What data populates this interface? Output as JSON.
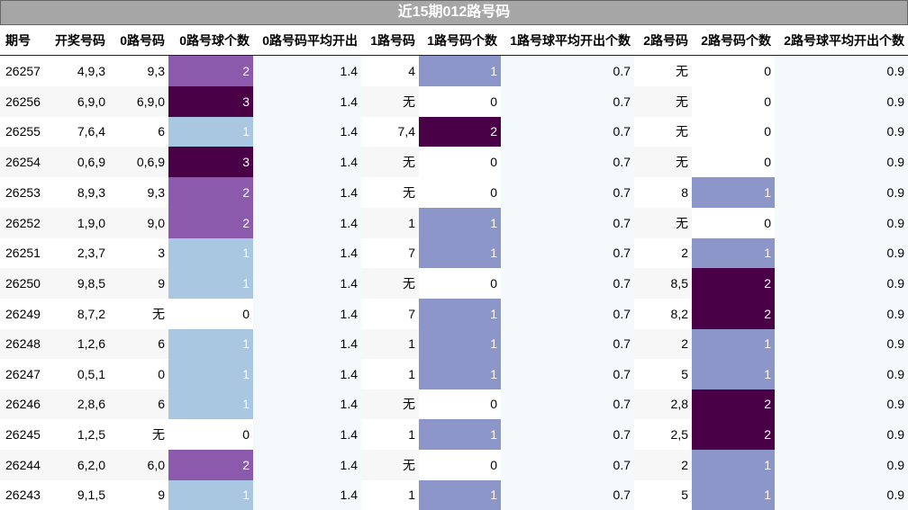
{
  "title": "近15期012路号码",
  "headers": [
    "期号",
    "开奖号码",
    "0路号码",
    "0路号球个数",
    "0路号码平均开出",
    "1路号码",
    "1路号码个数",
    "1路号球平均开出个数",
    "2路号码",
    "2路号码个数",
    "2路号球平均开出个数"
  ],
  "rows": [
    [
      "26257",
      "4,9,3",
      "9,3",
      "2",
      "1.4",
      "4",
      "1",
      "0.7",
      "无",
      "0",
      "0.9"
    ],
    [
      "26256",
      "6,9,0",
      "6,9,0",
      "3",
      "1.4",
      "无",
      "0",
      "0.7",
      "无",
      "0",
      "0.9"
    ],
    [
      "26255",
      "7,6,4",
      "6",
      "1",
      "1.4",
      "7,4",
      "2",
      "0.7",
      "无",
      "0",
      "0.9"
    ],
    [
      "26254",
      "0,6,9",
      "0,6,9",
      "3",
      "1.4",
      "无",
      "0",
      "0.7",
      "无",
      "0",
      "0.9"
    ],
    [
      "26253",
      "8,9,3",
      "9,3",
      "2",
      "1.4",
      "无",
      "0",
      "0.7",
      "8",
      "1",
      "0.9"
    ],
    [
      "26252",
      "1,9,0",
      "9,0",
      "2",
      "1.4",
      "1",
      "1",
      "0.7",
      "无",
      "0",
      "0.9"
    ],
    [
      "26251",
      "2,3,7",
      "3",
      "1",
      "1.4",
      "7",
      "1",
      "0.7",
      "2",
      "1",
      "0.9"
    ],
    [
      "26250",
      "9,8,5",
      "9",
      "1",
      "1.4",
      "无",
      "0",
      "0.7",
      "8,5",
      "2",
      "0.9"
    ],
    [
      "26249",
      "8,7,2",
      "无",
      "0",
      "1.4",
      "7",
      "1",
      "0.7",
      "8,2",
      "2",
      "0.9"
    ],
    [
      "26248",
      "1,2,6",
      "6",
      "1",
      "1.4",
      "1",
      "1",
      "0.7",
      "2",
      "1",
      "0.9"
    ],
    [
      "26247",
      "0,5,1",
      "0",
      "1",
      "1.4",
      "1",
      "1",
      "0.7",
      "5",
      "1",
      "0.9"
    ],
    [
      "26246",
      "2,8,6",
      "6",
      "1",
      "1.4",
      "无",
      "0",
      "0.7",
      "2,8",
      "2",
      "0.9"
    ],
    [
      "26245",
      "1,2,5",
      "无",
      "0",
      "1.4",
      "1",
      "1",
      "0.7",
      "2,5",
      "2",
      "0.9"
    ],
    [
      "26244",
      "6,2,0",
      "6,0",
      "2",
      "1.4",
      "无",
      "0",
      "0.7",
      "2",
      "1",
      "0.9"
    ],
    [
      "26243",
      "9,1,5",
      "9",
      "1",
      "1.4",
      "1",
      "1",
      "0.7",
      "5",
      "1",
      "0.9"
    ]
  ],
  "colors": {
    "row_stripe": "#f7f7f7",
    "zone_tint": "#f4f9fc",
    "count0_scale": {
      "0": "#ffffff",
      "1": "#a9c7e1",
      "2": "#8c5aad",
      "3": "#4a0047"
    },
    "count1_scale": {
      "0": "#ffffff",
      "1": "#8d96c8",
      "2": "#4a0047"
    },
    "count2_scale": {
      "0": "#ffffff",
      "1": "#8d96c8",
      "2": "#4a0047"
    }
  }
}
